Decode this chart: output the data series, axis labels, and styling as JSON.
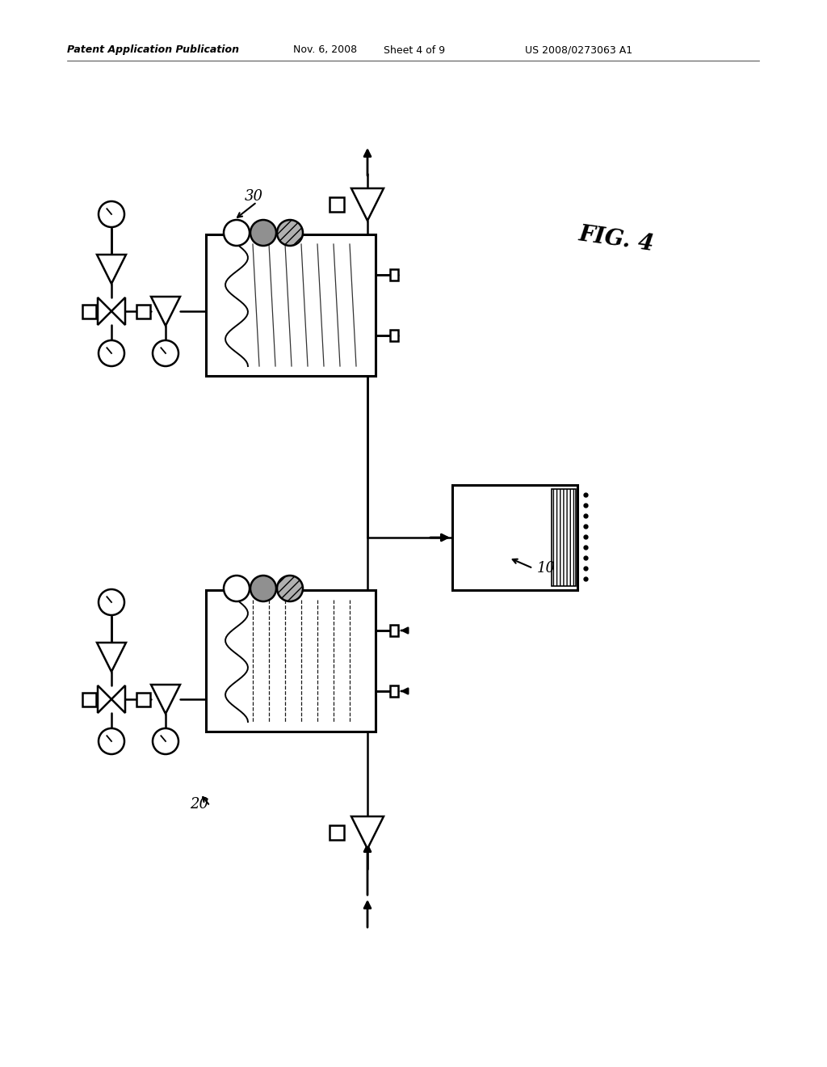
{
  "bg_color": "#ffffff",
  "header_text": "Patent Application Publication",
  "header_date": "Nov. 6, 2008",
  "header_sheet": "Sheet 4 of 9",
  "header_patent": "US 2008/0273063 A1",
  "fig_label": "FIG. 4",
  "label_10": "10",
  "label_20": "20",
  "label_30": "30"
}
